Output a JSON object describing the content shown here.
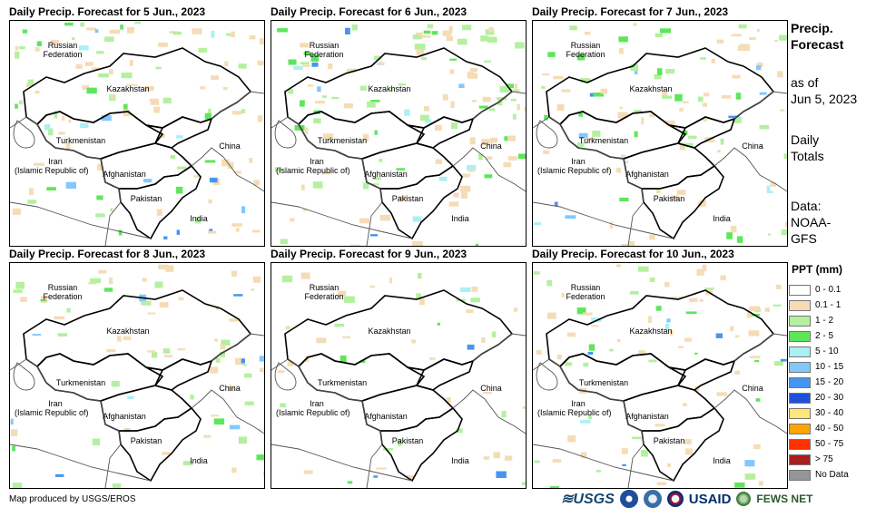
{
  "panels": [
    {
      "title": "Daily Precip. Forecast for 5 Jun., 2023",
      "intensity": 0.9
    },
    {
      "title": "Daily Precip. Forecast for 6 Jun., 2023",
      "intensity": 1.0
    },
    {
      "title": "Daily Precip. Forecast for 7 Jun., 2023",
      "intensity": 0.8
    },
    {
      "title": "Daily Precip. Forecast for 8 Jun., 2023",
      "intensity": 0.6
    },
    {
      "title": "Daily Precip. Forecast for 9 Jun., 2023",
      "intensity": 0.4
    },
    {
      "title": "Daily Precip. Forecast for 10 Jun., 2023",
      "intensity": 0.7
    }
  ],
  "map_labels": {
    "russia_line1": "Russian",
    "russia_line2": "Federation",
    "kazakhstan": "Kazakhstan",
    "turkmenistan": "Turkmenistan",
    "iran_line1": "Iran",
    "iran_line2": "(Islamic Republic of)",
    "afghanistan": "Afghanistan",
    "pakistan": "Pakistan",
    "china": "China",
    "india": "India"
  },
  "side_info": {
    "title_line1": "Precip.",
    "title_line2": "Forecast",
    "asof_line1": "as of",
    "asof_line2": "Jun 5, 2023",
    "daily_line1": "Daily",
    "daily_line2": "Totals",
    "data_line1": "Data:",
    "data_line2": "NOAA-",
    "data_line3": "GFS"
  },
  "legend": {
    "title": "PPT (mm)",
    "items": [
      {
        "label": "0 - 0.1",
        "color": "#ffffff"
      },
      {
        "label": "0.1 - 1",
        "color": "#f5dcb6"
      },
      {
        "label": "1 - 2",
        "color": "#b4f0a0"
      },
      {
        "label": "2 - 5",
        "color": "#5ee65a"
      },
      {
        "label": "5 - 10",
        "color": "#aaf0f5"
      },
      {
        "label": "10 - 15",
        "color": "#82c8ff"
      },
      {
        "label": "15 - 20",
        "color": "#4696f0"
      },
      {
        "label": "20 - 30",
        "color": "#1e50dc"
      },
      {
        "label": "30 - 40",
        "color": "#ffe678"
      },
      {
        "label": "40 - 50",
        "color": "#ffa500"
      },
      {
        "label": "50 - 75",
        "color": "#ff3200"
      },
      {
        "label": "> 75",
        "color": "#aa1e1e"
      },
      {
        "label": "No Data",
        "color": "#969696"
      }
    ]
  },
  "footer": {
    "credit": "Map produced by USGS/EROS",
    "usgs": "≋USGS",
    "usaid": "USAID",
    "fews": "FEWS NET"
  },
  "colors": {
    "border": "#000000",
    "noaa_blue": "#1f4e9c",
    "dhs_blue": "#3a6ea5",
    "usaid_red": "#c2113a",
    "fews_green": "#3c7a3c"
  }
}
